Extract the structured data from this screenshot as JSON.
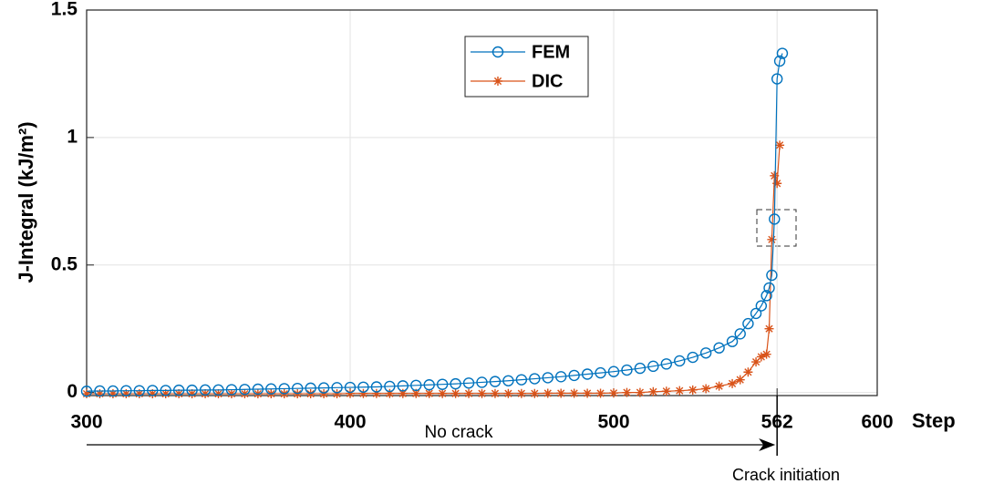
{
  "chart_data": {
    "type": "line",
    "ylabel": "J-Integral (kJ/m²)",
    "xlabel": "Step",
    "annotations": [
      "No crack",
      "Crack initiation"
    ],
    "x": [
      300,
      305,
      310,
      315,
      320,
      325,
      330,
      335,
      340,
      345,
      350,
      355,
      360,
      365,
      370,
      375,
      380,
      385,
      390,
      395,
      400,
      405,
      410,
      415,
      420,
      425,
      430,
      435,
      440,
      445,
      450,
      455,
      460,
      465,
      470,
      475,
      480,
      485,
      490,
      495,
      500,
      505,
      510,
      515,
      520,
      525,
      530,
      535,
      540,
      545,
      548,
      551,
      554,
      556,
      558,
      559,
      560,
      561,
      562,
      563,
      564
    ],
    "series": [
      {
        "name": "FEM",
        "color": "#0072bd",
        "marker": "circle",
        "values": [
          0.005,
          0.006,
          0.006,
          0.007,
          0.007,
          0.008,
          0.008,
          0.009,
          0.009,
          0.01,
          0.01,
          0.011,
          0.012,
          0.013,
          0.014,
          0.015,
          0.016,
          0.017,
          0.018,
          0.019,
          0.02,
          0.021,
          0.022,
          0.024,
          0.026,
          0.028,
          0.03,
          0.032,
          0.034,
          0.037,
          0.04,
          0.043,
          0.046,
          0.05,
          0.054,
          0.058,
          0.062,
          0.067,
          0.072,
          0.077,
          0.082,
          0.088,
          0.095,
          0.103,
          0.112,
          0.124,
          0.138,
          0.155,
          0.175,
          0.2,
          0.23,
          0.27,
          0.31,
          0.34,
          0.38,
          0.41,
          0.46,
          0.68,
          1.23,
          1.3,
          1.33
        ]
      },
      {
        "name": "DIC",
        "color": "#d95319",
        "marker": "asterisk",
        "values": [
          -0.005,
          -0.005,
          -0.005,
          -0.005,
          -0.005,
          -0.005,
          -0.005,
          -0.005,
          -0.005,
          -0.005,
          -0.005,
          -0.005,
          -0.005,
          -0.005,
          -0.005,
          -0.005,
          -0.005,
          -0.005,
          -0.005,
          -0.005,
          -0.004,
          -0.004,
          -0.004,
          -0.004,
          -0.004,
          -0.004,
          -0.004,
          -0.004,
          -0.004,
          -0.004,
          -0.004,
          -0.004,
          -0.004,
          -0.004,
          -0.004,
          -0.003,
          -0.003,
          -0.003,
          -0.003,
          -0.003,
          -0.002,
          0,
          0,
          0.003,
          0.005,
          0.007,
          0.01,
          0.015,
          0.025,
          0.035,
          0.05,
          0.08,
          0.12,
          0.14,
          0.15,
          0.25,
          0.6,
          0.85,
          0.82,
          0.97,
          null
        ]
      }
    ],
    "xlim": [
      300,
      600
    ],
    "xticks": [
      300,
      400,
      500,
      562,
      600
    ],
    "ylim": [
      -0.012,
      1.5
    ],
    "yticks": [
      0,
      0.5,
      1,
      1.5
    ],
    "grid": true,
    "legend": "top"
  }
}
